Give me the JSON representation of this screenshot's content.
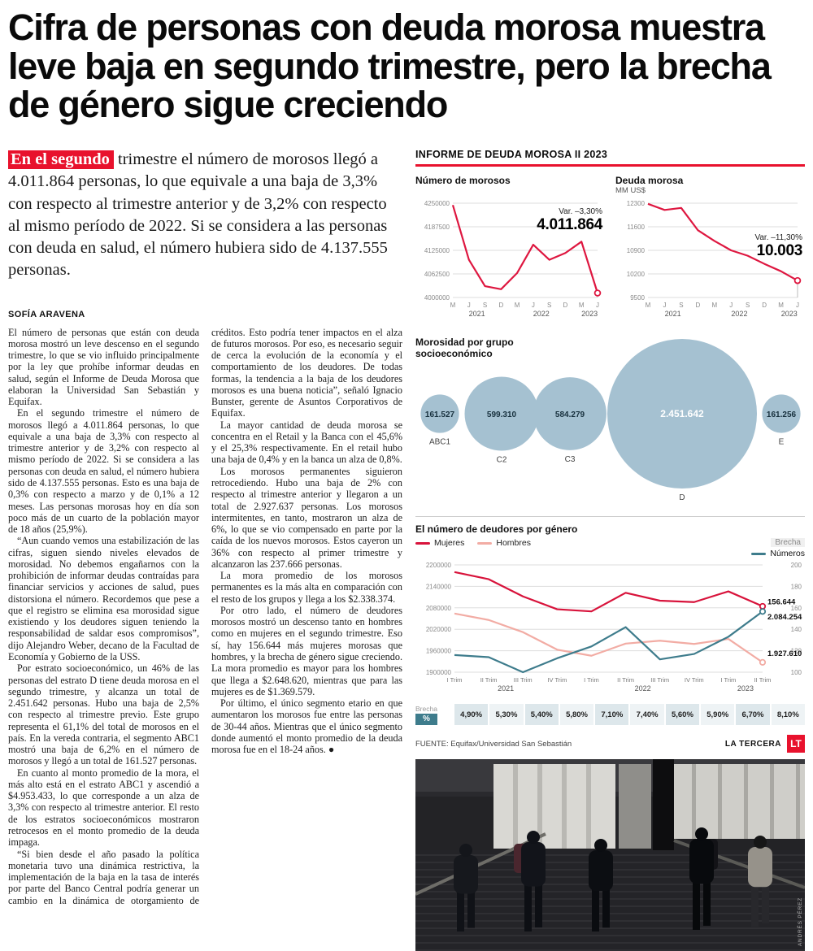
{
  "headline": "Cifra de personas con deuda morosa muestra leve baja en segundo trimestre, pero la brecha de género sigue creciendo",
  "lead": {
    "highlight": "En el segundo",
    "rest": " trimestre el número de morosos llegó a 4.011.864 personas, lo que equivale a una baja de 3,3% con respecto al trimestre anterior y de 3,2% con respecto al mismo período de 2022. Si se considera a las personas con deuda en salud, el número hubiera sido de 4.137.555 personas."
  },
  "byline": "SOFÍA ARAVENA",
  "article": {
    "paragraphs": [
      "El número de personas que están con deuda morosa mostró un leve descenso en el segundo trimestre, lo que se vio influido principalmente por la ley que prohíbe informar deudas en salud, según el Informe de Deuda Morosa que elaboran la Universidad San Sebastián y Equifax.",
      "En el segundo trimestre el número de morosos llegó a 4.011.864 personas, lo que equivale a una baja de 3,3% con respecto al trimestre anterior y de 3,2% con respecto al mismo período de 2022. Si se considera a las personas con deuda en salud, el número hubiera sido de 4.137.555 personas. Esto es una baja de 0,3% con respecto a marzo y de 0,1% a 12 meses. Las personas morosas hoy en día son poco más de un cuarto de la población mayor de 18 años (25,9%).",
      "“Aun cuando vemos una estabilización de las cifras, siguen siendo niveles elevados de morosidad. No debemos engañarnos con la prohibición de informar deudas contraídas para financiar servicios y acciones de salud, pues distorsiona el número. Recordemos que pese a que el registro se elimina esa morosidad sigue existiendo y los deudores siguen teniendo la responsabilidad de saldar esos compromisos”, dijo Alejandro Weber, decano de la Facultad de Economía y Gobierno de la USS.",
      "Por estrato socioeconómico, un 46% de las personas del estrato D tiene deuda morosa en el segundo trimestre, y alcanza un total de 2.451.642 personas. Hubo una baja de 2,5% con respecto al trimestre previo. Este grupo representa el 61,1% del total de morosos en el país. En la vereda contraria, el segmento ABC1 mostró una baja de 6,2% en el número de morosos y llegó a un total de 161.527 personas.",
      "En cuanto al monto promedio de la mora, el más alto está en el estrato ABC1 y ascendió a $4.953.433, lo que corresponde a un alza de 3,3% con respecto al trimestre anterior. El resto de los estratos socioeconómicos mostraron retrocesos en el monto promedio de la deuda impaga.",
      "“Si bien desde el año pasado la política monetaria tuvo una dinámica restrictiva, la implementación de la baja en la tasa de interés por parte del Banco Central podría generar un cambio en la dinámica de otorgamiento de créditos. Esto podría tener impactos en el alza de futuros morosos. Por eso, es necesario seguir de cerca la evolución de la economía y el comportamiento de los deudores. De todas formas, la tendencia a la baja de los deudores morosos es una buena noticia”, señaló Ignacio Bunster, gerente de Asuntos Corporativos de Equifax.",
      "La mayor cantidad de deuda morosa se concentra en el Retail y la Banca con el 45,6% y el 25,3% respectivamente. En el retail hubo una baja de 0,4% y en la banca un alza de 0,8%.",
      "Los morosos permanentes siguieron retrocediendo. Hubo una baja de 2% con respecto al trimestre anterior y llegaron a un total de 2.927.637 personas. Los morosos intermitentes, en tanto, mostraron un alza de 6%, lo que se vio compensado en parte por la caída de los nuevos morosos. Estos cayeron un 36% con respecto al primer trimestre y alcanzaron las 237.666 personas.",
      "La mora promedio de los morosos permanentes es la más alta en comparación con el resto de los grupos y llega a los $2.338.374.",
      "Por otro lado, el número de deudores morosos mostró un descenso tanto en hombres como en mujeres en el segundo trimestre. Eso sí, hay 156.644 más mujeres morosas que hombres, y la brecha de género sigue creciendo. La mora promedio es mayor para los hombres que llega a $2.648.620, mientras que para las mujeres es de $1.369.579.",
      "Por último, el único segmento etario en que aumentaron los morosos fue entre las personas de 30-44 años. Mientras que el único segmento donde aumentó el monto promedio de la deuda morosa fue en el 18-24 años. ●"
    ]
  },
  "infographic": {
    "header": "INFORME DE DEUDA MOROSA II 2023",
    "source": "FUENTE: Equifax/Universidad San Sebastián",
    "brand": "LA TERCERA",
    "brand_logo": "LT",
    "photo_credit": "ANDRÉS PÉREZ",
    "accent_red": "#e8122d"
  },
  "chart_data": [
    {
      "id": "chart-morosos",
      "type": "line",
      "title": "Número de morosos",
      "subtitle": "",
      "x": [
        "M",
        "J",
        "S",
        "D",
        "M",
        "J",
        "S",
        "D",
        "M",
        "J"
      ],
      "years": [
        {
          "label": "2021",
          "from": 0,
          "to": 3
        },
        {
          "label": "2022",
          "from": 4,
          "to": 7
        },
        {
          "label": "2023",
          "from": 8,
          "to": 9
        }
      ],
      "yticks": [
        4250000,
        4187500,
        4125000,
        4062500,
        4000000
      ],
      "ylim": [
        4000000,
        4250000
      ],
      "grid": true,
      "legend_position": "none",
      "series": [
        {
          "name": "Número de morosos",
          "color": "#de1740",
          "values": [
            4245000,
            4100000,
            4030000,
            4022000,
            4065000,
            4140000,
            4100000,
            4118000,
            4148000,
            4011864
          ]
        }
      ],
      "annotation": {
        "var": "Var. –3,30%",
        "big": "4.011.864"
      }
    },
    {
      "id": "chart-deuda",
      "type": "line",
      "title": "Deuda morosa",
      "subtitle": "MM US$",
      "x": [
        "M",
        "J",
        "S",
        "D",
        "M",
        "J",
        "S",
        "D",
        "M",
        "J"
      ],
      "years": [
        {
          "label": "2021",
          "from": 0,
          "to": 3
        },
        {
          "label": "2022",
          "from": 4,
          "to": 7
        },
        {
          "label": "2023",
          "from": 8,
          "to": 9
        }
      ],
      "yticks": [
        12300,
        11600,
        10900,
        10200,
        9500
      ],
      "ylim": [
        9500,
        12300
      ],
      "grid": true,
      "legend_position": "none",
      "series": [
        {
          "name": "Deuda morosa MM US$",
          "color": "#de1740",
          "values": [
            12280,
            12100,
            12160,
            11500,
            11180,
            10900,
            10740,
            10500,
            10280,
            10003
          ]
        }
      ],
      "annotation": {
        "var": "Var. –11,30%",
        "big": "10.003"
      }
    },
    {
      "id": "chart-socioeconomico",
      "type": "bubble",
      "title": "Morosidad por grupo socioeconómico",
      "bubble_color": "#a5c1d1",
      "groups": [
        {
          "label": "ABC1",
          "value": 161527,
          "display": "161.527"
        },
        {
          "label": "C2",
          "value": 599310,
          "display": "599.310"
        },
        {
          "label": "C3",
          "value": 584279,
          "display": "584.279"
        },
        {
          "label": "D",
          "value": 2451642,
          "display": "2.451.642"
        },
        {
          "label": "E",
          "value": 161256,
          "display": "161.256"
        }
      ]
    },
    {
      "id": "chart-genero",
      "type": "line",
      "title": "El número de deudores por género",
      "x": [
        "I Trim",
        "II Trim",
        "III Trim",
        "IV Trim",
        "I Trim",
        "II Trim",
        "III Trim",
        "IV Trim",
        "I Trim",
        "II Trim"
      ],
      "years": [
        {
          "label": "2021",
          "from": 0,
          "to": 3
        },
        {
          "label": "2022",
          "from": 4,
          "to": 7
        },
        {
          "label": "2023",
          "from": 8,
          "to": 9
        }
      ],
      "yticks_left": [
        2200000,
        2140000,
        2080000,
        2020000,
        1960000,
        1900000
      ],
      "ylim_left": [
        1900000,
        2200000
      ],
      "yticks_right": [
        200,
        180,
        160,
        140,
        120,
        100
      ],
      "ylim_right": [
        100,
        200
      ],
      "grid": true,
      "series": [
        {
          "name": "Mujeres",
          "axis": "left",
          "color": "#d8133b",
          "values": [
            2180000,
            2160000,
            2112000,
            2076000,
            2070000,
            2122000,
            2100000,
            2096000,
            2126000,
            2084254
          ],
          "end_label": "2.084.254"
        },
        {
          "name": "Hombres",
          "axis": "left",
          "color": "#f2aca4",
          "values": [
            2064000,
            2046000,
            2012000,
            1963000,
            1946000,
            1980000,
            1988000,
            1979000,
            1993000,
            1927610
          ],
          "end_label": "1.927.610"
        },
        {
          "name": "Brecha",
          "axis": "right",
          "color": "#3e7c8c",
          "values": [
            116,
            114,
            100,
            113,
            124,
            142,
            112,
            117,
            133,
            156.6
          ],
          "end_label": "156.644"
        }
      ],
      "legend_left": [
        {
          "label": "Mujeres"
        },
        {
          "label": "Hombres"
        }
      ],
      "legend_right": [
        {
          "label": "Brecha"
        },
        {
          "label": "Números"
        }
      ],
      "brecha_row": {
        "label_small": "Brecha",
        "label_pct": "%",
        "values": [
          "4,90%",
          "5,30%",
          "5,40%",
          "5,80%",
          "7,10%",
          "7,40%",
          "5,60%",
          "5,90%",
          "6,70%",
          "8,10%"
        ]
      }
    }
  ]
}
